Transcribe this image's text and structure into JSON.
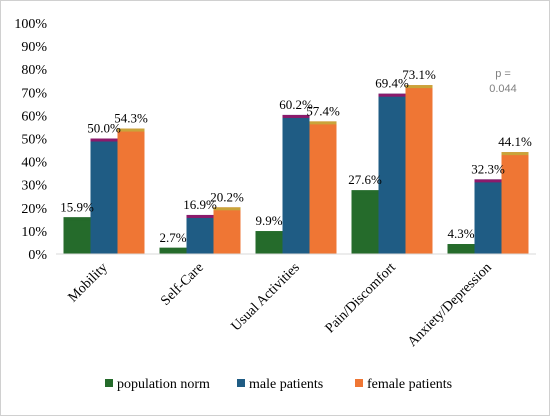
{
  "chart_data": {
    "type": "bar",
    "categories": [
      "Mobility",
      "Self-Care",
      "Usual Activities",
      "Pain/Discomfort",
      "Anxiety/Depression"
    ],
    "series": [
      {
        "name": "population norm",
        "values": [
          15.9,
          2.7,
          9.9,
          27.6,
          4.3
        ],
        "labels": [
          "15.9%",
          "2.7%",
          "9.9%",
          "27.6%",
          "4.3%"
        ],
        "color": "#256b2b",
        "accent": "#256b2b"
      },
      {
        "name": "male patients",
        "values": [
          50.0,
          16.9,
          60.2,
          69.4,
          32.3
        ],
        "labels": [
          "50.0%",
          "16.9%",
          "60.2%",
          "69.4%",
          "32.3%"
        ],
        "color": "#1f5c84",
        "accent": "#8b1a6b"
      },
      {
        "name": "female patients",
        "values": [
          54.3,
          20.2,
          57.4,
          73.1,
          44.1
        ],
        "labels": [
          "54.3%",
          "20.2%",
          "57.4%",
          "73.1%",
          "44.1%"
        ],
        "color": "#ef7634",
        "accent": "#c9a43a"
      }
    ],
    "y_ticks": [
      "0%",
      "10%",
      "20%",
      "30%",
      "40%",
      "50%",
      "60%",
      "70%",
      "80%",
      "90%",
      "100%"
    ],
    "ylim": [
      0,
      100
    ],
    "grid": false,
    "legend_position": "bottom",
    "annotation": {
      "line1": "p =",
      "line2": "0.044"
    }
  }
}
